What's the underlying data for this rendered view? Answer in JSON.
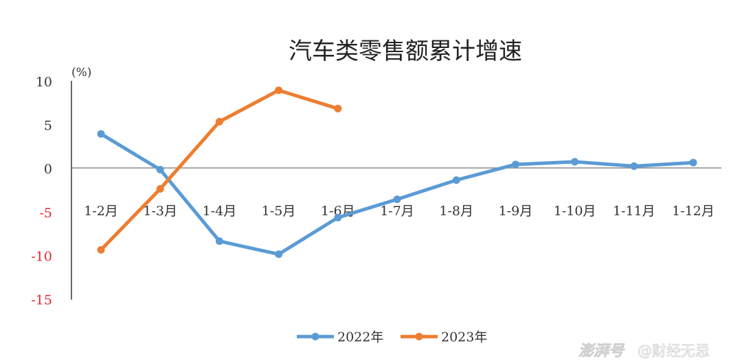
{
  "chart_data": {
    "type": "line",
    "title": "汽车类零售额累计增速",
    "unit": "(%)",
    "categories": [
      "1-2月",
      "1-3月",
      "1-4月",
      "1-5月",
      "1-6月",
      "1-7月",
      "1-8月",
      "1-9月",
      "1-10月",
      "1-11月",
      "1-12月"
    ],
    "y_ticks": [
      "10",
      "5",
      "0",
      "-5",
      "-10",
      "-15"
    ],
    "ylim": [
      -15,
      10
    ],
    "grid": false,
    "legend_position": "bottom",
    "series": [
      {
        "name": "2022年",
        "color": "#5b9bd5",
        "values": [
          4.0,
          -0.1,
          -8.3,
          -9.8,
          -5.6,
          -3.5,
          -1.3,
          0.5,
          0.8,
          0.3,
          0.7
        ]
      },
      {
        "name": "2023年",
        "color": "#ed7d31",
        "values": [
          -9.3,
          -2.3,
          5.4,
          9.0,
          6.9,
          null,
          null,
          null,
          null,
          null,
          null
        ]
      }
    ],
    "tick_colors": {
      "positive": "#333333",
      "negative": "#e8242c"
    }
  },
  "watermark": {
    "brand": "澎湃号",
    "account": "@财经无忌"
  }
}
